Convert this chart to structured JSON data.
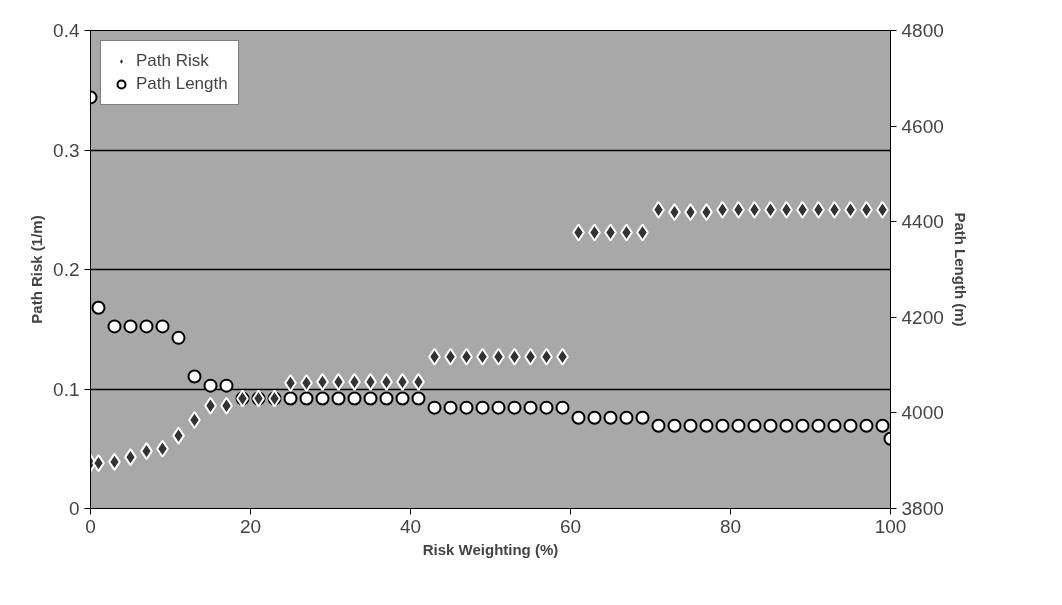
{
  "chart_data": {
    "type": "scatter",
    "xlabel": "Risk Weighting (%)",
    "ylabel": "Path Risk (1/m)",
    "y2label": "Path Length (m)",
    "xlim": [
      0,
      100
    ],
    "xticks": [
      0,
      20,
      40,
      60,
      80,
      100
    ],
    "ylim": [
      0,
      0.4
    ],
    "yticks": [
      0,
      0.1,
      0.2,
      0.3,
      0.4
    ],
    "y2lim": [
      3800,
      4800
    ],
    "y2ticks": [
      3800,
      4000,
      4200,
      4400,
      4600,
      4800
    ],
    "grid": "y",
    "legend": "top left",
    "series": [
      {
        "name": "Path Risk",
        "color": "#333333",
        "marker": "diamond",
        "x": [
          0,
          1,
          3,
          5,
          7,
          9,
          11,
          13,
          15,
          17,
          19,
          21,
          23,
          25,
          27,
          29,
          31,
          33,
          35,
          37,
          39,
          41,
          43,
          45,
          47,
          49,
          51,
          53,
          55,
          57,
          59,
          61,
          63,
          65,
          67,
          69,
          71,
          73,
          75,
          77,
          79,
          81,
          83,
          85,
          87,
          89,
          91,
          93,
          95,
          97,
          99
        ],
        "values": [
          0.038,
          0.038,
          0.039,
          0.043,
          0.048,
          0.05,
          0.061,
          0.074,
          0.086,
          0.086,
          0.092,
          0.092,
          0.092,
          0.105,
          0.105,
          0.106,
          0.106,
          0.106,
          0.106,
          0.106,
          0.106,
          0.106,
          0.127,
          0.127,
          0.127,
          0.127,
          0.127,
          0.127,
          0.127,
          0.127,
          0.127,
          0.231,
          0.231,
          0.231,
          0.231,
          0.231,
          0.25,
          0.248,
          0.248,
          0.248,
          0.25,
          0.25,
          0.25,
          0.25,
          0.25,
          0.25,
          0.25,
          0.25,
          0.25,
          0.25,
          0.25
        ]
      },
      {
        "name": "Path Length",
        "color": "#000000",
        "marker": "circle",
        "axis": "y2",
        "x": [
          0,
          1,
          3,
          5,
          7,
          9,
          11,
          13,
          15,
          17,
          19,
          21,
          23,
          25,
          27,
          29,
          31,
          33,
          35,
          37,
          39,
          41,
          43,
          45,
          47,
          49,
          51,
          53,
          55,
          57,
          59,
          61,
          63,
          65,
          67,
          69,
          71,
          73,
          75,
          77,
          79,
          81,
          83,
          85,
          87,
          89,
          91,
          93,
          95,
          97,
          99,
          100
        ],
        "values": [
          4660,
          4220,
          4181,
          4181,
          4181,
          4181,
          4157,
          4076,
          4057,
          4057,
          4030,
          4030,
          4030,
          4030,
          4030,
          4030,
          4030,
          4030,
          4030,
          4030,
          4030,
          4030,
          4011,
          4011,
          4011,
          4011,
          4011,
          4011,
          4011,
          4011,
          4011,
          3990,
          3990,
          3990,
          3990,
          3990,
          3973,
          3973,
          3973,
          3973,
          3973,
          3973,
          3973,
          3973,
          3973,
          3973,
          3973,
          3973,
          3973,
          3973,
          3973,
          3946
        ]
      }
    ]
  }
}
